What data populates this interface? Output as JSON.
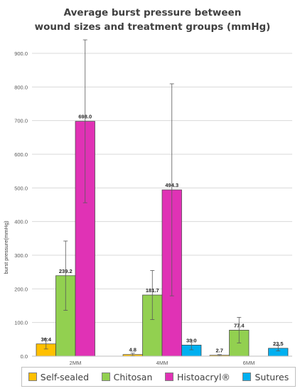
{
  "chart_data": {
    "type": "bar",
    "title": "Average burst pressure between wound sizes and treatment groups (mmHg)",
    "title_lines": [
      "Average burst pressure between",
      "wound sizes and treatment groups (mmHg)"
    ],
    "ylabel": "burst pressure(mmHg)",
    "xlabel": "",
    "ylim": [
      0,
      900
    ],
    "ytick_values": [
      0,
      100,
      200,
      300,
      400,
      500,
      600,
      700,
      800,
      900
    ],
    "ytick_labels": [
      "0.0",
      "100.0",
      "200.0",
      "300.0",
      "400.0",
      "500.0",
      "600.0",
      "700.0",
      "800.0",
      "900.0"
    ],
    "categories": [
      "2MM",
      "4MM",
      "6MM"
    ],
    "grid": true,
    "legend_position": "bottom",
    "series": [
      {
        "name": "Self-sealed",
        "color": "#ffc000",
        "values": [
          36.4,
          4.8,
          2.7
        ],
        "labels": [
          "36.4",
          "4.8",
          "2.7"
        ],
        "error": [
          15,
          4,
          2
        ]
      },
      {
        "name": "Chitosan",
        "color": "#92d050",
        "values": [
          239.2,
          181.7,
          77.4
        ],
        "labels": [
          "239.2",
          "181.7",
          "77.4"
        ],
        "error": [
          103,
          73,
          38
        ]
      },
      {
        "name": "Histoacryl®",
        "color": "#e032b5",
        "values": [
          698.0,
          494.3,
          null
        ],
        "labels": [
          "698.0",
          "494.3",
          ""
        ],
        "error": [
          242,
          315,
          0
        ]
      },
      {
        "name": "Sutures",
        "color": "#00b0f0",
        "values": [
          null,
          33.0,
          23.5
        ],
        "labels": [
          "",
          "33.0",
          "23.5"
        ],
        "error": [
          0,
          14,
          8
        ]
      }
    ]
  }
}
